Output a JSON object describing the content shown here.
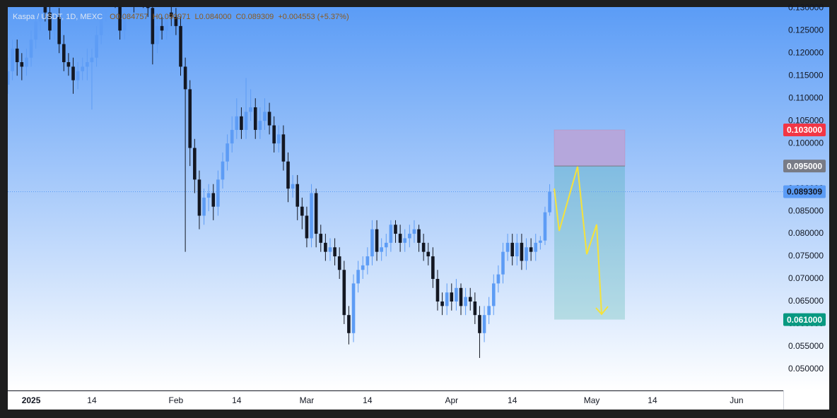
{
  "chart_data": {
    "type": "candlestick",
    "header": {
      "fields": [
        {
          "key": "O",
          "value": "0.084757"
        },
        {
          "key": "H",
          "value": "0.090971"
        },
        {
          "key": "L",
          "value": "0.084000"
        },
        {
          "key": "C",
          "value": "0.089309"
        }
      ],
      "change": "+0.004553 (+5.37%)"
    },
    "series": [
      {
        "name": "Kaspa / USDT, 1D, MEXC",
        "up_color": "#5d9cf5",
        "down_color": "#131722",
        "x": [
          "2024-12-27",
          "2024-12-28",
          "2024-12-29",
          "2024-12-30",
          "2024-12-31",
          "2025-01-01",
          "2025-01-02",
          "2025-01-03",
          "2025-01-04",
          "2025-01-05",
          "2025-01-06",
          "2025-01-07",
          "2025-01-08",
          "2025-01-09",
          "2025-01-10",
          "2025-01-11",
          "2025-01-12",
          "2025-01-13",
          "2025-01-14",
          "2025-01-15",
          "2025-01-16",
          "2025-01-17",
          "2025-01-18",
          "2025-01-19",
          "2025-01-20",
          "2025-01-21",
          "2025-01-22",
          "2025-01-23",
          "2025-01-24",
          "2025-01-25",
          "2025-01-26",
          "2025-01-27",
          "2025-01-28",
          "2025-01-29",
          "2025-01-30",
          "2025-01-31",
          "2025-02-01",
          "2025-02-02",
          "2025-02-03",
          "2025-02-04",
          "2025-02-05",
          "2025-02-06",
          "2025-02-07",
          "2025-02-08",
          "2025-02-09",
          "2025-02-10",
          "2025-02-11",
          "2025-02-12",
          "2025-02-13",
          "2025-02-14",
          "2025-02-15",
          "2025-02-16",
          "2025-02-17",
          "2025-02-18",
          "2025-02-19",
          "2025-02-20",
          "2025-02-21",
          "2025-02-22",
          "2025-02-23",
          "2025-02-24",
          "2025-02-25",
          "2025-02-26",
          "2025-02-27",
          "2025-02-28",
          "2025-03-01",
          "2025-03-02",
          "2025-03-03",
          "2025-03-04",
          "2025-03-05",
          "2025-03-06",
          "2025-03-07",
          "2025-03-08",
          "2025-03-09",
          "2025-03-10",
          "2025-03-11",
          "2025-03-12",
          "2025-03-13",
          "2025-03-14",
          "2025-03-15",
          "2025-03-16",
          "2025-03-17",
          "2025-03-18",
          "2025-03-19",
          "2025-03-20",
          "2025-03-21",
          "2025-03-22",
          "2025-03-23",
          "2025-03-24",
          "2025-03-25",
          "2025-03-26",
          "2025-03-27",
          "2025-03-28",
          "2025-03-29",
          "2025-03-30",
          "2025-03-31",
          "2025-04-01",
          "2025-04-02",
          "2025-04-03",
          "2025-04-04",
          "2025-04-05",
          "2025-04-06",
          "2025-04-07",
          "2025-04-08",
          "2025-04-09",
          "2025-04-10",
          "2025-04-11",
          "2025-04-12",
          "2025-04-13",
          "2025-04-14",
          "2025-04-15",
          "2025-04-16",
          "2025-04-17",
          "2025-04-18",
          "2025-04-19",
          "2025-04-20",
          "2025-04-21",
          "2025-04-22"
        ],
        "open": [
          0.113,
          0.116,
          0.121,
          0.118,
          0.117,
          0.119,
          0.123,
          0.127,
          0.131,
          0.129,
          0.125,
          0.128,
          0.122,
          0.118,
          0.117,
          0.114,
          0.116,
          0.117,
          0.118,
          0.119,
          0.124,
          0.129,
          0.133,
          0.134,
          0.132,
          0.125,
          0.129,
          0.133,
          0.131,
          0.133,
          0.132,
          0.13,
          0.122,
          0.126,
          0.125,
          0.129,
          0.128,
          0.126,
          0.117,
          0.112,
          0.099,
          0.092,
          0.084,
          0.088,
          0.089,
          0.086,
          0.092,
          0.096,
          0.1,
          0.103,
          0.106,
          0.103,
          0.107,
          0.108,
          0.103,
          0.105,
          0.107,
          0.104,
          0.1,
          0.102,
          0.096,
          0.09,
          0.091,
          0.086,
          0.084,
          0.079,
          0.089,
          0.08,
          0.078,
          0.076,
          0.077,
          0.075,
          0.072,
          0.062,
          0.058,
          0.069,
          0.072,
          0.073,
          0.075,
          0.081,
          0.076,
          0.077,
          0.078,
          0.082,
          0.08,
          0.078,
          0.079,
          0.08,
          0.081,
          0.078,
          0.076,
          0.075,
          0.07,
          0.065,
          0.064,
          0.067,
          0.065,
          0.068,
          0.064,
          0.066,
          0.065,
          0.062,
          0.058,
          0.062,
          0.064,
          0.069,
          0.071,
          0.076,
          0.078,
          0.075,
          0.078,
          0.074,
          0.077,
          0.076,
          0.078,
          0.0785,
          0.084757
        ],
        "high": [
          0.119,
          0.123,
          0.123,
          0.12,
          0.121,
          0.125,
          0.129,
          0.134,
          0.133,
          0.131,
          0.13,
          0.13,
          0.124,
          0.12,
          0.119,
          0.118,
          0.119,
          0.121,
          0.121,
          0.126,
          0.131,
          0.136,
          0.137,
          0.136,
          0.134,
          0.131,
          0.135,
          0.135,
          0.135,
          0.135,
          0.134,
          0.132,
          0.128,
          0.128,
          0.132,
          0.131,
          0.13,
          0.128,
          0.119,
          0.114,
          0.101,
          0.094,
          0.09,
          0.091,
          0.091,
          0.094,
          0.098,
          0.102,
          0.106,
          0.11,
          0.108,
          0.1145,
          0.112,
          0.11,
          0.108,
          0.11,
          0.109,
          0.106,
          0.104,
          0.104,
          0.098,
          0.093,
          0.093,
          0.088,
          0.086,
          0.091,
          0.09,
          0.082,
          0.08,
          0.079,
          0.079,
          0.077,
          0.074,
          0.064,
          0.071,
          0.074,
          0.075,
          0.077,
          0.083,
          0.083,
          0.079,
          0.08,
          0.083,
          0.083,
          0.082,
          0.081,
          0.082,
          0.083,
          0.082,
          0.08,
          0.078,
          0.077,
          0.072,
          0.067,
          0.069,
          0.069,
          0.07,
          0.069,
          0.068,
          0.068,
          0.067,
          0.064,
          0.064,
          0.066,
          0.071,
          0.073,
          0.078,
          0.08,
          0.08,
          0.08,
          0.08,
          0.079,
          0.079,
          0.08,
          0.0795,
          0.086,
          0.090971
        ],
        "low": [
          0.111,
          0.114,
          0.115,
          0.114,
          0.115,
          0.117,
          0.121,
          0.125,
          0.127,
          0.123,
          0.123,
          0.12,
          0.116,
          0.115,
          0.111,
          0.112,
          0.114,
          0.114,
          0.1075,
          0.117,
          0.122,
          0.127,
          0.131,
          0.13,
          0.123,
          0.123,
          0.127,
          0.129,
          0.129,
          0.13,
          0.128,
          0.1175,
          0.12,
          0.123,
          0.123,
          0.126,
          0.124,
          0.115,
          0.076,
          0.095,
          0.089,
          0.081,
          0.082,
          0.085,
          0.083,
          0.084,
          0.09,
          0.094,
          0.098,
          0.101,
          0.101,
          0.101,
          0.105,
          0.101,
          0.101,
          0.103,
          0.102,
          0.098,
          0.098,
          0.094,
          0.087,
          0.088,
          0.083,
          0.081,
          0.077,
          0.077,
          0.077,
          0.076,
          0.074,
          0.074,
          0.073,
          0.07,
          0.06,
          0.0555,
          0.056,
          0.067,
          0.07,
          0.071,
          0.073,
          0.074,
          0.074,
          0.075,
          0.076,
          0.078,
          0.076,
          0.076,
          0.077,
          0.078,
          0.076,
          0.074,
          0.073,
          0.068,
          0.063,
          0.062,
          0.062,
          0.063,
          0.063,
          0.062,
          0.062,
          0.063,
          0.06,
          0.0525,
          0.056,
          0.06,
          0.062,
          0.067,
          0.069,
          0.074,
          0.073,
          0.073,
          0.072,
          0.072,
          0.074,
          0.074,
          0.0765,
          0.0775,
          0.084
        ],
        "close": [
          0.116,
          0.121,
          0.118,
          0.117,
          0.119,
          0.123,
          0.127,
          0.131,
          0.129,
          0.125,
          0.128,
          0.122,
          0.118,
          0.117,
          0.114,
          0.116,
          0.117,
          0.118,
          0.119,
          0.124,
          0.129,
          0.133,
          0.134,
          0.132,
          0.125,
          0.129,
          0.133,
          0.131,
          0.133,
          0.132,
          0.13,
          0.122,
          0.126,
          0.125,
          0.129,
          0.128,
          0.126,
          0.117,
          0.112,
          0.099,
          0.092,
          0.084,
          0.088,
          0.089,
          0.086,
          0.092,
          0.096,
          0.1,
          0.103,
          0.106,
          0.103,
          0.107,
          0.108,
          0.103,
          0.105,
          0.107,
          0.104,
          0.1,
          0.102,
          0.096,
          0.09,
          0.091,
          0.086,
          0.084,
          0.079,
          0.089,
          0.08,
          0.078,
          0.076,
          0.077,
          0.075,
          0.072,
          0.062,
          0.058,
          0.069,
          0.072,
          0.073,
          0.075,
          0.081,
          0.076,
          0.077,
          0.078,
          0.082,
          0.08,
          0.078,
          0.079,
          0.08,
          0.081,
          0.078,
          0.076,
          0.075,
          0.07,
          0.065,
          0.064,
          0.067,
          0.065,
          0.068,
          0.064,
          0.066,
          0.065,
          0.062,
          0.058,
          0.062,
          0.064,
          0.069,
          0.071,
          0.076,
          0.078,
          0.075,
          0.078,
          0.074,
          0.077,
          0.076,
          0.078,
          0.0785,
          0.084757,
          0.089309
        ]
      }
    ],
    "xlim": [
      "2024-12-27",
      "2025-06-11"
    ],
    "xticks": [
      {
        "value": "2025-01-01",
        "label": "2025"
      },
      {
        "value": "2025-01-14",
        "label": "14"
      },
      {
        "value": "2025-02-01",
        "label": "Feb"
      },
      {
        "value": "2025-02-14",
        "label": "14"
      },
      {
        "value": "2025-03-01",
        "label": "Mar"
      },
      {
        "value": "2025-03-14",
        "label": "14"
      },
      {
        "value": "2025-04-01",
        "label": "Apr"
      },
      {
        "value": "2025-04-14",
        "label": "14"
      },
      {
        "value": "2025-05-01",
        "label": "May"
      },
      {
        "value": "2025-05-14",
        "label": "14"
      },
      {
        "value": "2025-06-01",
        "label": "Jun"
      }
    ],
    "ylim": [
      0.0453,
      0.1302
    ],
    "yticks": [
      {
        "value": 0.05,
        "label": "0.050000"
      },
      {
        "value": 0.055,
        "label": "0.055000"
      },
      {
        "value": 0.06,
        "label": "0.060000"
      },
      {
        "value": 0.065,
        "label": "0.065000"
      },
      {
        "value": 0.07,
        "label": "0.070000"
      },
      {
        "value": 0.075,
        "label": "0.075000"
      },
      {
        "value": 0.08,
        "label": "0.080000"
      },
      {
        "value": 0.085,
        "label": "0.085000"
      },
      {
        "value": 0.09,
        "label": "0.090000"
      },
      {
        "value": 0.095,
        "label": "0.095000"
      },
      {
        "value": 0.1,
        "label": "0.100000"
      },
      {
        "value": 0.105,
        "label": "0.105000"
      },
      {
        "value": 0.11,
        "label": "0.110000"
      },
      {
        "value": 0.115,
        "label": "0.115000"
      },
      {
        "value": 0.12,
        "label": "0.120000"
      },
      {
        "value": 0.125,
        "label": "0.125000"
      },
      {
        "value": 0.13,
        "label": "0.130000"
      }
    ],
    "current_price": {
      "value": 0.089309,
      "label": "0.089309",
      "color": "#5b9cf6"
    },
    "position": {
      "stop": {
        "value": 0.103,
        "label": "0.103000",
        "color": "#f23645"
      },
      "entry": {
        "value": 0.095,
        "label": "0.095000",
        "color": "#787b86"
      },
      "target": {
        "value": 0.061,
        "label": "0.061000",
        "color": "#089981"
      }
    }
  }
}
